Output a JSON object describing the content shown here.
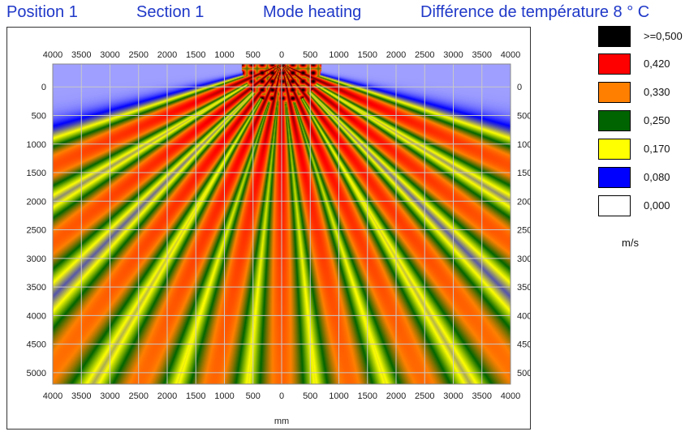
{
  "header": {
    "position": "Position  1",
    "section": "Section  1",
    "mode": "Mode heating",
    "temp_diff": "Différence de température  8 ° C"
  },
  "legend": {
    "unit": "m/s",
    "entries": [
      {
        "label": ">=0,500",
        "color": "#000000"
      },
      {
        "label": "0,420",
        "color": "#ff0000"
      },
      {
        "label": "0,330",
        "color": "#ff8000"
      },
      {
        "label": "0,250",
        "color": "#006400"
      },
      {
        "label": "0,170",
        "color": "#ffff00"
      },
      {
        "label": "0,080",
        "color": "#0000ff"
      },
      {
        "label": "0,000",
        "color": "#ffffff"
      }
    ]
  },
  "chart_data": {
    "type": "heatmap",
    "xlabel": "mm",
    "ylabel": "",
    "x_ticks": [
      "4000",
      "3500",
      "3000",
      "2500",
      "2000",
      "1500",
      "1000",
      "500",
      "0",
      "500",
      "1000",
      "1500",
      "2000",
      "2500",
      "3000",
      "3500",
      "4000"
    ],
    "y_ticks": [
      "0",
      "500",
      "1000",
      "1500",
      "2000",
      "2500",
      "3000",
      "3500",
      "4000",
      "4500",
      "5000"
    ],
    "xlim": [
      -4000,
      4000
    ],
    "ylim": [
      -400,
      5200
    ],
    "grid": true,
    "source_x": 0,
    "source_y": -400,
    "jet_angles_deg": [
      -66,
      -52,
      -37,
      -24,
      -12,
      0,
      12,
      24,
      37,
      52,
      66
    ],
    "jet_width_deg": 4.5,
    "jet_peak": 0.5,
    "jet_edge": 0.03,
    "color_scale": [
      {
        "v": 0.0,
        "color": "#ffffff"
      },
      {
        "v": 0.08,
        "color": "#0000ff"
      },
      {
        "v": 0.17,
        "color": "#ffff00"
      },
      {
        "v": 0.25,
        "color": "#006400"
      },
      {
        "v": 0.33,
        "color": "#ff8000"
      },
      {
        "v": 0.42,
        "color": "#ff0000"
      },
      {
        "v": 0.5,
        "color": "#000000"
      }
    ]
  }
}
